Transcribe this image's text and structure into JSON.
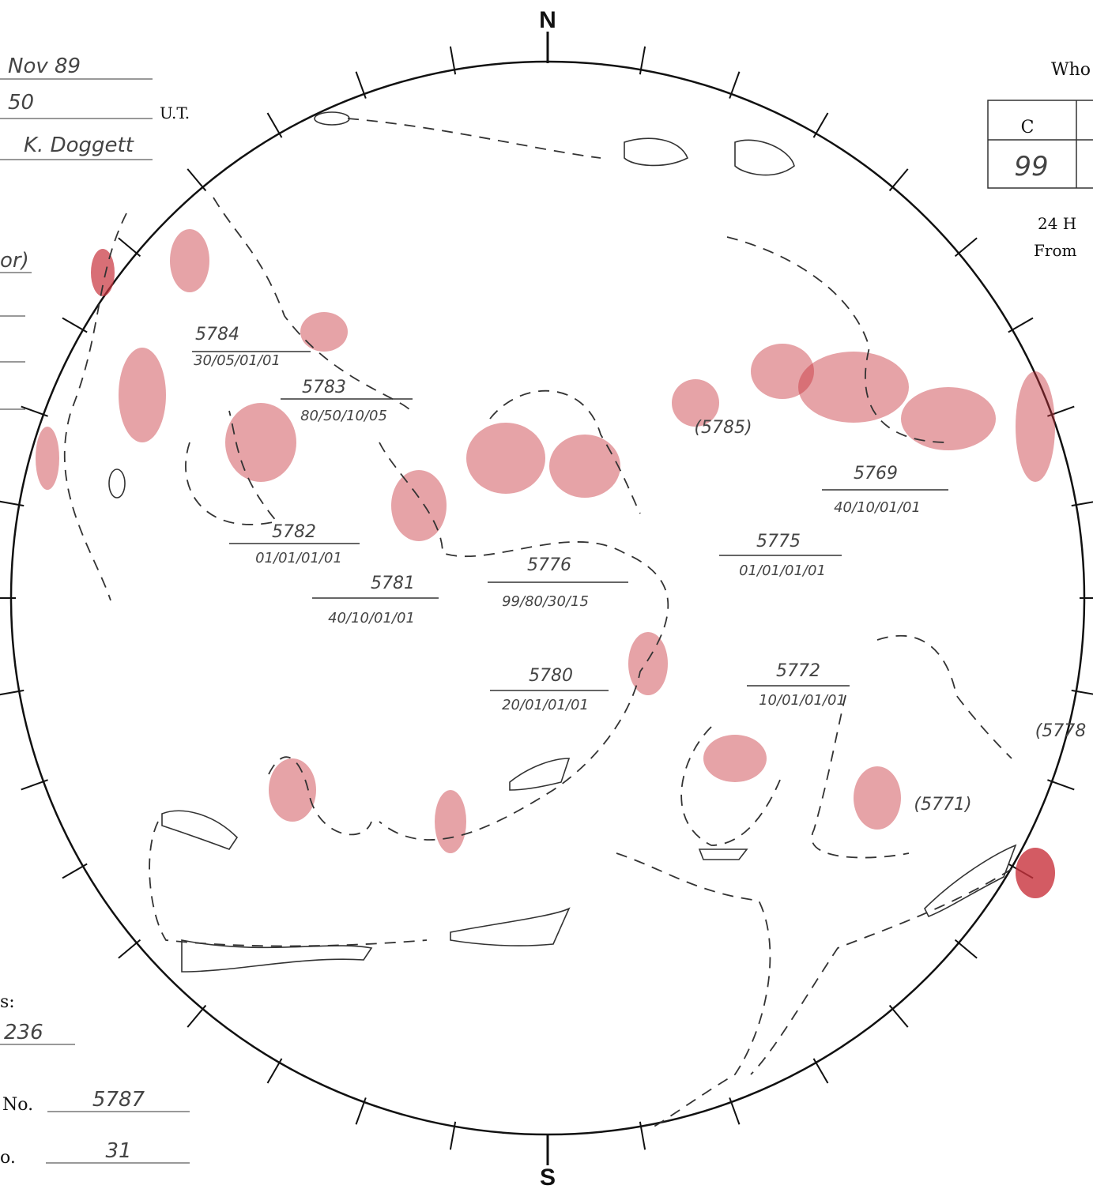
{
  "header": {
    "date": "Nov 89",
    "time": "50",
    "time_unit": "U.T.",
    "observer": "K. Doggett",
    "note": "or)",
    "top_right": "Who"
  },
  "compass": {
    "north": "N",
    "south": "S"
  },
  "table": {
    "header": "C",
    "value": "99"
  },
  "right_notes": [
    "24 H",
    "From"
  ],
  "footer": {
    "label1": "s:",
    "value1": "236",
    "label2": "No.",
    "value2": "5787",
    "label3": "o.",
    "value3": "31"
  },
  "regions": [
    {
      "label": "5784",
      "class": "30/05/01/01"
    },
    {
      "label": "5783",
      "class": "80/50/10/05"
    },
    {
      "label": "(5785)"
    },
    {
      "label": "5769",
      "class": "40/10/01/01"
    },
    {
      "label": "5782",
      "class": "01/01/01/01"
    },
    {
      "label": "5781",
      "class": "40/10/01/01"
    },
    {
      "label": "5776",
      "class": "99/80/30/15"
    },
    {
      "label": "5775",
      "class": "01/01/01/01"
    },
    {
      "label": "5780",
      "class": "20/01/01/01"
    },
    {
      "label": "5772",
      "class": "10/01/01/01"
    },
    {
      "label": "(5778"
    },
    {
      "label": "(5771)"
    }
  ]
}
